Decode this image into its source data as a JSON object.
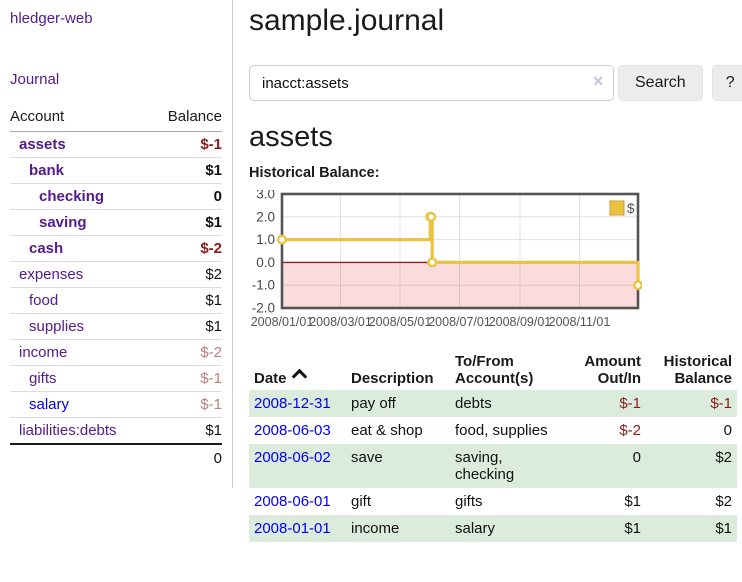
{
  "sidebar": {
    "app_title": "hledger-web",
    "journal_link": "Journal",
    "account_header": "Account",
    "balance_header": "Balance",
    "accounts": [
      {
        "name": "assets",
        "depth": 0,
        "bold": true,
        "link": "purple",
        "balance": "$-1",
        "balance_class": "neg"
      },
      {
        "name": "bank",
        "depth": 1,
        "bold": true,
        "link": "purple",
        "balance": "$1",
        "balance_class": ""
      },
      {
        "name": "checking",
        "depth": 2,
        "bold": true,
        "link": "purple",
        "balance": "0",
        "balance_class": ""
      },
      {
        "name": "saving",
        "depth": 2,
        "bold": true,
        "link": "purple",
        "balance": "$1",
        "balance_class": ""
      },
      {
        "name": "cash",
        "depth": 1,
        "bold": true,
        "link": "purple",
        "balance": "$-2",
        "balance_class": "neg"
      },
      {
        "name": "expenses",
        "depth": 0,
        "bold": false,
        "link": "purple",
        "balance": "$2",
        "balance_class": ""
      },
      {
        "name": "food",
        "depth": 1,
        "bold": false,
        "link": "purple",
        "balance": "$1",
        "balance_class": ""
      },
      {
        "name": "supplies",
        "depth": 1,
        "bold": false,
        "link": "purple",
        "balance": "$1",
        "balance_class": ""
      },
      {
        "name": "income",
        "depth": 0,
        "bold": false,
        "link": "purple",
        "balance": "$-2",
        "balance_class": "neg-muted"
      },
      {
        "name": "gifts",
        "depth": 1,
        "bold": false,
        "link": "purple",
        "balance": "$-1",
        "balance_class": "neg-muted"
      },
      {
        "name": "salary",
        "depth": 1,
        "bold": false,
        "link": "blue",
        "balance": "$-1",
        "balance_class": "neg-muted"
      },
      {
        "name": "liabilities:debts",
        "depth": 0,
        "bold": false,
        "link": "purple",
        "balance": "$1",
        "balance_class": ""
      }
    ],
    "total": "0"
  },
  "main": {
    "title": "sample.journal",
    "search": {
      "value": "inacct:assets",
      "clear_icon": "✕",
      "button_label": "Search",
      "help_label": "?"
    },
    "account_heading": "assets"
  },
  "chart_data": {
    "type": "line",
    "step": true,
    "title": "Historical Balance:",
    "series": [
      {
        "name": "$",
        "color": "#edc240",
        "points": [
          [
            "2008-01-01",
            1
          ],
          [
            "2008-06-01",
            2
          ],
          [
            "2008-06-02",
            2
          ],
          [
            "2008-06-03",
            0
          ],
          [
            "2008-12-31",
            -1
          ]
        ]
      }
    ],
    "xrange": [
      "2008-01-01",
      "2008-12-31"
    ],
    "ylim": [
      -2,
      3
    ],
    "yticks": [
      3,
      2,
      1,
      0,
      -1,
      -2
    ],
    "xticks": [
      "2008/01/01",
      "2008/03/01",
      "2008/05/01",
      "2008/07/01",
      "2008/09/01",
      "2008/11/01"
    ],
    "legend_position": "top-right",
    "grid": true,
    "negative_region_color": "#fbdcdc",
    "zero_line_color": "#8f2121"
  },
  "register": {
    "headers": {
      "date": "Date",
      "sort_icon": "chevron-up",
      "description": "Description",
      "accounts": "To/From Account(s)",
      "amount": "Amount Out/In",
      "balance": "Historical Balance"
    },
    "rows": [
      {
        "date": "2008-12-31",
        "description": "pay off",
        "accounts": "debts",
        "amount": "$-1",
        "amount_class": "neg",
        "balance": "$-1",
        "balance_class": "neg"
      },
      {
        "date": "2008-06-03",
        "description": "eat & shop",
        "accounts": "food, supplies",
        "amount": "$-2",
        "amount_class": "neg",
        "balance": "0",
        "balance_class": ""
      },
      {
        "date": "2008-06-02",
        "description": "save",
        "accounts": "saving, checking",
        "amount": "0",
        "amount_class": "",
        "balance": "$2",
        "balance_class": ""
      },
      {
        "date": "2008-06-01",
        "description": "gift",
        "accounts": "gifts",
        "amount": "$1",
        "amount_class": "",
        "balance": "$2",
        "balance_class": ""
      },
      {
        "date": "2008-01-01",
        "description": "income",
        "accounts": "salary",
        "amount": "$1",
        "amount_class": "",
        "balance": "$1",
        "balance_class": ""
      }
    ]
  },
  "colors": {
    "link_visited": "#551a8b",
    "link_unvisited": "#0000ee",
    "negative": "#8b1a1a",
    "negative_muted": "#bd7d7d",
    "row_stripe": "#dcecdc",
    "chart_series": "#edc240"
  }
}
